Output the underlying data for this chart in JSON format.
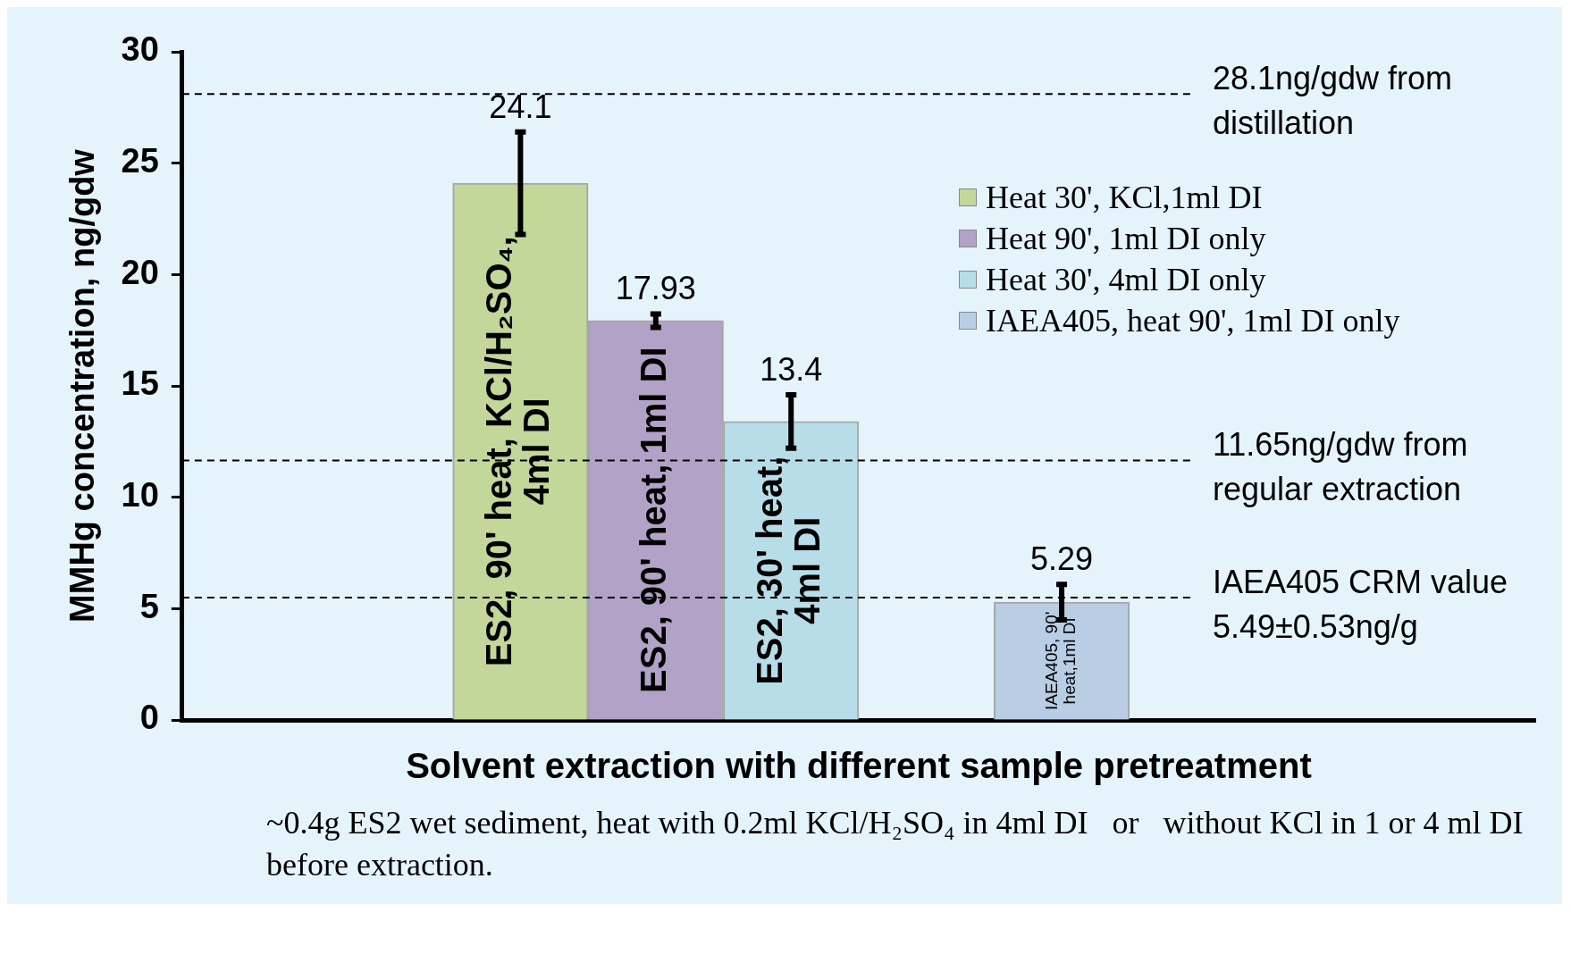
{
  "chart_data": {
    "type": "bar",
    "xlabel": "Solvent extraction with different sample pretreatment",
    "ylabel": "MMHg concentration, ng/gdw",
    "categories": [
      null,
      null,
      "ES2, 90' heat, KCl/H₂SO₄, 4ml DI",
      "ES2, 90' heat, 1ml DI",
      "ES2, 30' heat, 4ml DI",
      null,
      "IAEA405, 90' heat,1ml DI",
      null,
      null,
      null
    ],
    "series": [
      {
        "name": "Heat 30', KCl,1ml DI",
        "color": "#c4d79b",
        "values": [
          null,
          null,
          24.1,
          null,
          null,
          null,
          null,
          null,
          null,
          null
        ],
        "errors": [
          null,
          null,
          2.3,
          null,
          null,
          null,
          null,
          null,
          null,
          null
        ]
      },
      {
        "name": "Heat 90', 1ml DI only",
        "color": "#b3a2c7",
        "values": [
          null,
          null,
          null,
          17.93,
          null,
          null,
          null,
          null,
          null,
          null
        ],
        "errors": [
          null,
          null,
          null,
          0.3,
          null,
          null,
          null,
          null,
          null,
          null
        ]
      },
      {
        "name": "Heat 30', 4ml DI only",
        "color": "#b7dee8",
        "values": [
          null,
          null,
          null,
          null,
          13.4,
          null,
          null,
          null,
          null,
          null
        ],
        "errors": [
          null,
          null,
          null,
          null,
          1.2,
          null,
          null,
          null,
          null,
          null
        ]
      },
      {
        "name": "IAEA405, heat 90', 1ml DI only",
        "color": "#b9cde5",
        "values": [
          null,
          null,
          null,
          null,
          null,
          null,
          5.29,
          null,
          null,
          null
        ],
        "errors": [
          null,
          null,
          null,
          null,
          null,
          null,
          0.8,
          null,
          null,
          null
        ]
      }
    ],
    "ylim": [
      0,
      30
    ],
    "yticks": [
      0,
      5,
      10,
      15,
      20,
      25,
      30
    ],
    "grid": false,
    "legend": "top right",
    "data_labels": true,
    "ref_lines": [
      {
        "axis": "y",
        "value": 28.1,
        "label": "28.1ng/gdw from distillation",
        "line_style": "dashed"
      },
      {
        "axis": "y",
        "value": 11.65,
        "label": "11.65ng/gdw from regular extraction",
        "line_style": "dashed"
      },
      {
        "axis": "y",
        "value": 5.49,
        "label": "IAEA405 CRM value 5.49±0.53ng/g",
        "line_style": "dashed"
      }
    ],
    "annotations": [
      "~0.4g ES2 wet sediment, heat with 0.2ml KCl/H₂SO₄ in 4ml DI   or   without KCl in 1 or 4 ml DI before extraction."
    ]
  }
}
